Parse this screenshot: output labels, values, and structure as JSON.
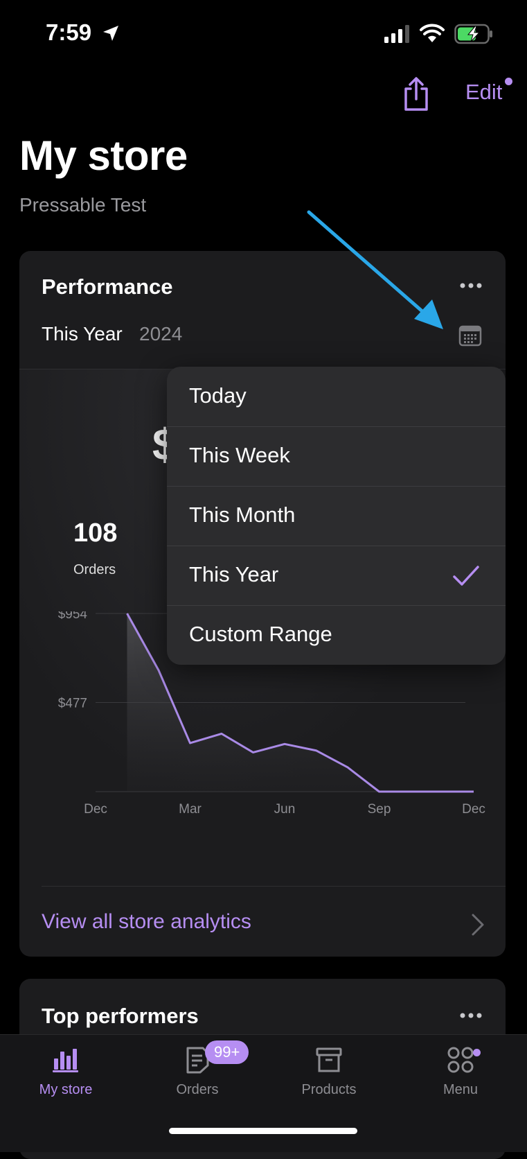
{
  "status_bar": {
    "time": "7:59"
  },
  "nav": {
    "edit_label": "Edit"
  },
  "header": {
    "title": "My store",
    "subtitle": "Pressable Test"
  },
  "performance": {
    "title": "Performance",
    "range_label": "This Year",
    "range_year": "2024",
    "revenue_partial": "$",
    "orders_value": "108",
    "orders_label": "Orders",
    "analytics_link": "View all store analytics"
  },
  "dropdown": {
    "items": [
      {
        "label": "Today",
        "selected": false
      },
      {
        "label": "This Week",
        "selected": false
      },
      {
        "label": "This Month",
        "selected": false
      },
      {
        "label": "This Year",
        "selected": true
      },
      {
        "label": "Custom Range",
        "selected": false
      }
    ]
  },
  "chart_data": {
    "type": "area",
    "y_tick_labels": [
      "$954",
      "$477"
    ],
    "x_tick_labels": [
      "Dec",
      "Mar",
      "Jun",
      "Sep",
      "Dec"
    ],
    "ylim": [
      0,
      954
    ],
    "values": [
      954,
      650,
      260,
      310,
      210,
      255,
      220,
      130,
      0,
      0,
      0,
      0
    ],
    "line_color": "#a98ae6"
  },
  "top_performers": {
    "title": "Top performers"
  },
  "tabbar": {
    "tabs": [
      {
        "label": "My store",
        "active": true,
        "icon": "bar-chart-icon"
      },
      {
        "label": "Orders",
        "active": false,
        "icon": "orders-icon",
        "badge": "99+"
      },
      {
        "label": "Products",
        "active": false,
        "icon": "archive-box-icon"
      },
      {
        "label": "Menu",
        "active": false,
        "icon": "menu-grid-icon"
      }
    ]
  },
  "colors": {
    "accent": "#b68ef2",
    "annotation_arrow": "#2aa7e8"
  }
}
